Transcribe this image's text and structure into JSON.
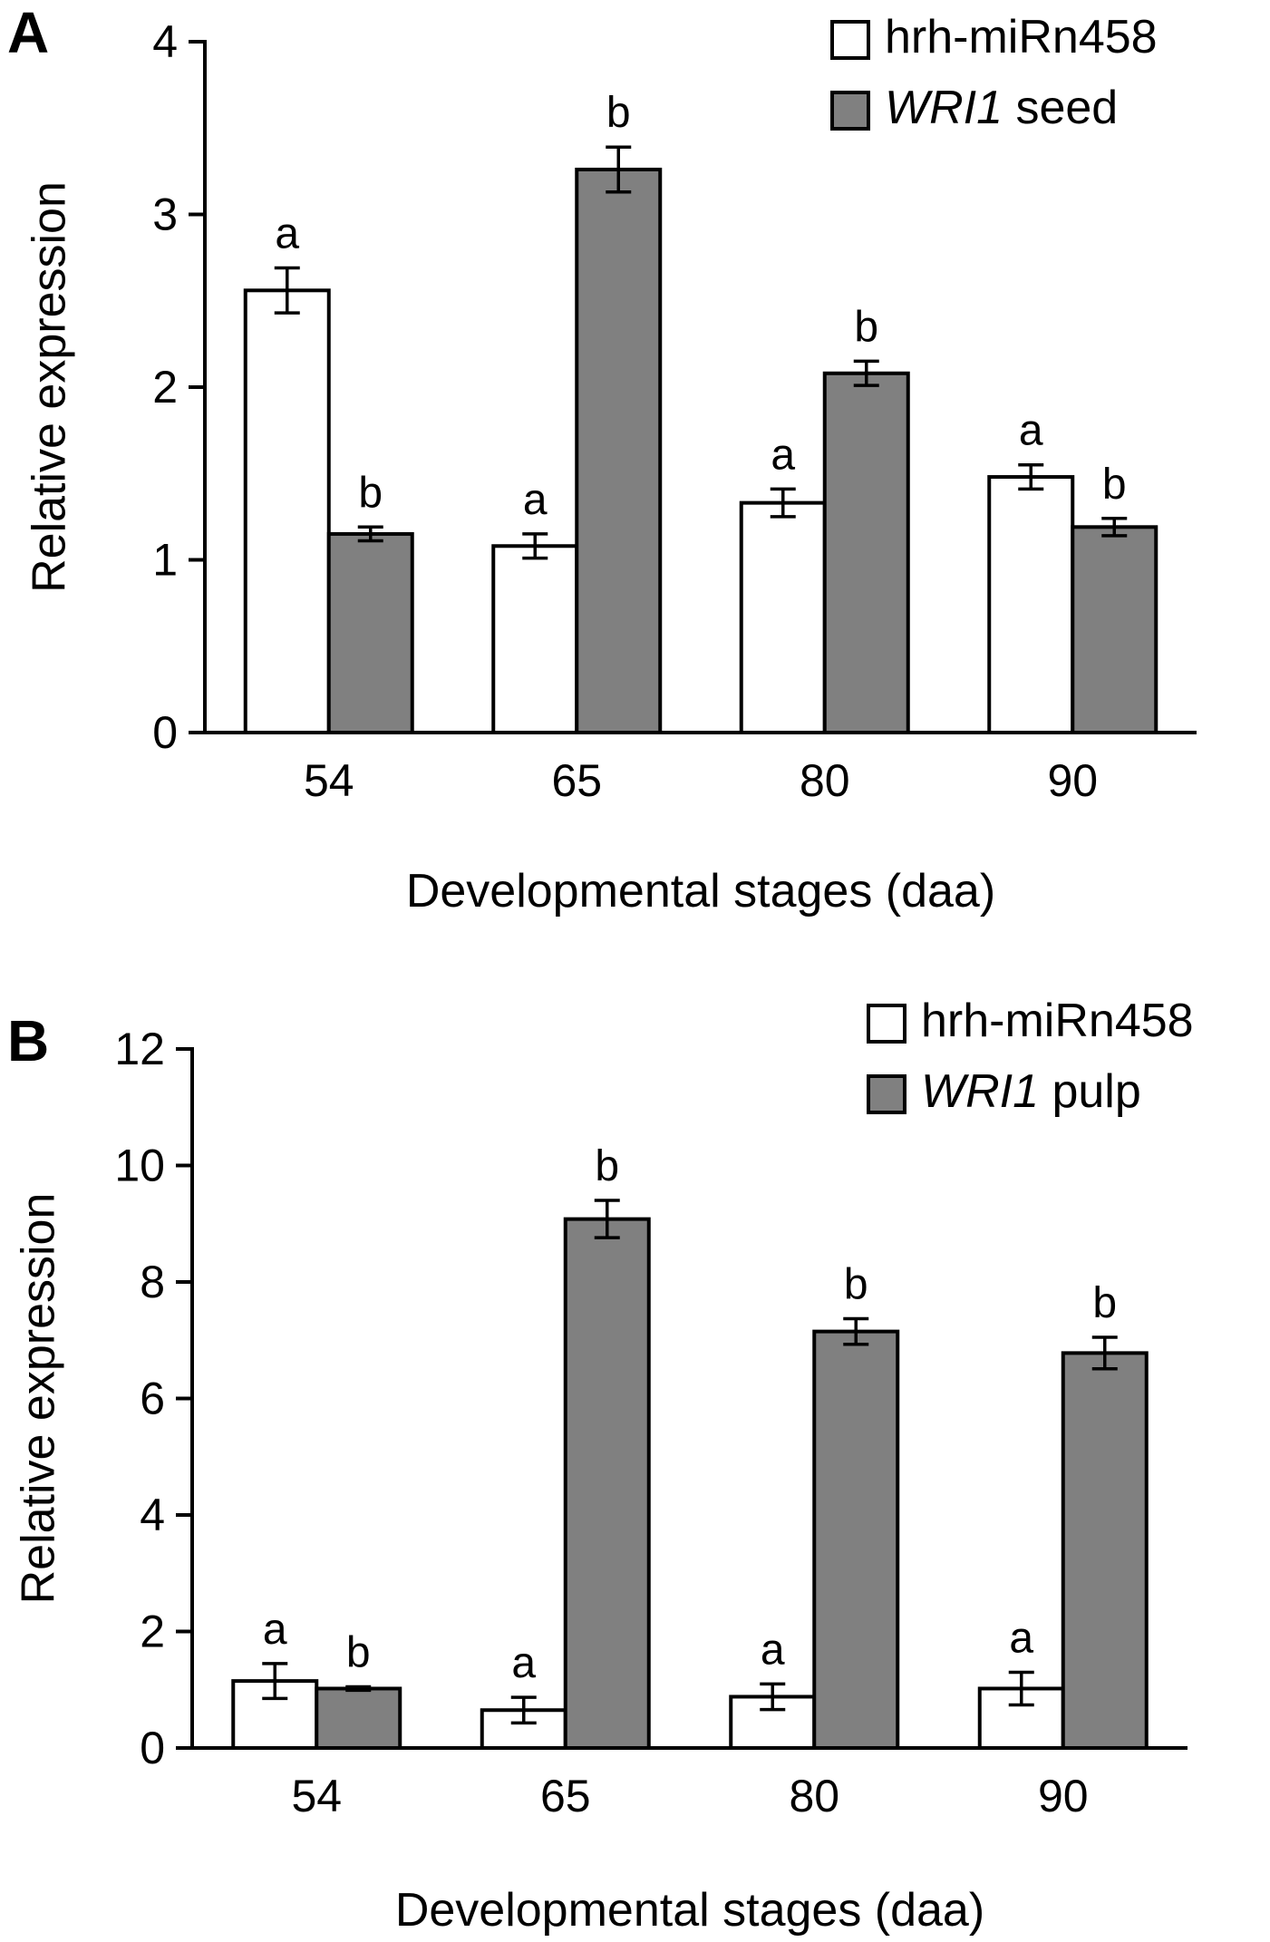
{
  "chart_data": [
    {
      "panel": "A",
      "type": "bar",
      "title": "",
      "xlabel": "Developmental stages (daa)",
      "ylabel": "Relative expression",
      "categories": [
        "54",
        "65",
        "80",
        "90"
      ],
      "ylim": [
        0,
        4
      ],
      "yticks": [
        0,
        1,
        2,
        3,
        4
      ],
      "grid": false,
      "legend_position": "top-right",
      "series": [
        {
          "name": "hrh-miRn458",
          "name_italic": "",
          "name_rest": "hrh-miRn458",
          "color": "#ffffff",
          "values": [
            2.56,
            1.08,
            1.33,
            1.48
          ],
          "errors": [
            0.13,
            0.07,
            0.08,
            0.07
          ],
          "letters": [
            "a",
            "a",
            "a",
            "a"
          ]
        },
        {
          "name": "WRI1 seed",
          "name_italic": "WRI1",
          "name_rest": " seed",
          "color": "#808080",
          "values": [
            1.15,
            3.26,
            2.08,
            1.19
          ],
          "errors": [
            0.04,
            0.13,
            0.07,
            0.05
          ],
          "letters": [
            "b",
            "b",
            "b",
            "b"
          ]
        }
      ]
    },
    {
      "panel": "B",
      "type": "bar",
      "title": "",
      "xlabel": "Developmental stages (daa)",
      "ylabel": "Relative expression",
      "categories": [
        "54",
        "65",
        "80",
        "90"
      ],
      "ylim": [
        0,
        12
      ],
      "yticks": [
        0,
        2,
        4,
        6,
        8,
        10,
        12
      ],
      "grid": false,
      "legend_position": "top-right",
      "series": [
        {
          "name": "hrh-miRn458",
          "name_italic": "",
          "name_rest": "hrh-miRn458",
          "color": "#ffffff",
          "values": [
            1.15,
            0.65,
            0.88,
            1.02
          ],
          "errors": [
            0.3,
            0.22,
            0.22,
            0.28
          ],
          "letters": [
            "a",
            "a",
            "a",
            "a"
          ]
        },
        {
          "name": "WRI1 pulp",
          "name_italic": "WRI1",
          "name_rest": " pulp",
          "color": "#808080",
          "values": [
            1.02,
            9.08,
            7.15,
            6.78
          ],
          "errors": [
            0.03,
            0.32,
            0.22,
            0.27
          ],
          "letters": [
            "b",
            "b",
            "b",
            "b"
          ]
        }
      ]
    }
  ]
}
